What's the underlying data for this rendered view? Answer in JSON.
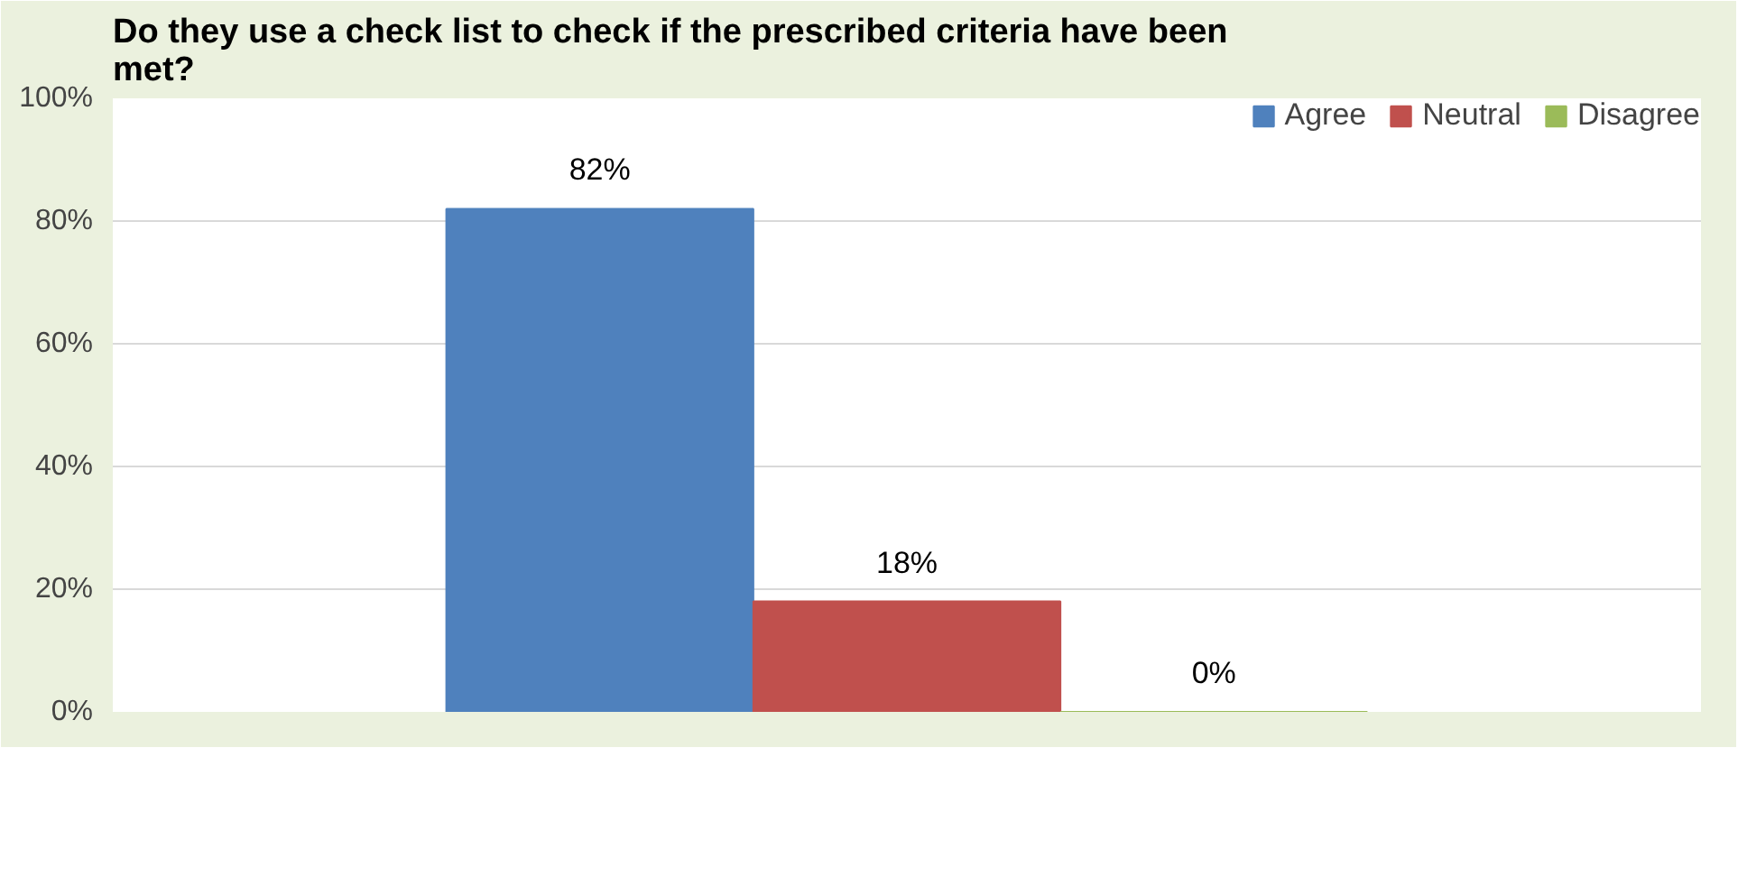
{
  "chart_data": {
    "type": "bar",
    "title": "Do they use a check list to check if the prescribed criteria have been met?",
    "categories": [
      null
    ],
    "series": [
      {
        "name": "Agree",
        "color": "#4f81bd",
        "values": [
          82
        ],
        "value_labels": [
          "82%"
        ]
      },
      {
        "name": "Neutral",
        "color": "#c0504d",
        "values": [
          18
        ],
        "value_labels": [
          "18%"
        ]
      },
      {
        "name": "Disagree",
        "color": "#9bbb59",
        "values": [
          0
        ],
        "value_labels": [
          "0%"
        ]
      }
    ],
    "ylim": [
      0,
      100
    ],
    "yticks": [
      {
        "value": 0,
        "label": "0%"
      },
      {
        "value": 20,
        "label": "20%"
      },
      {
        "value": 40,
        "label": "40%"
      },
      {
        "value": 60,
        "label": "60%"
      },
      {
        "value": 80,
        "label": "80%"
      },
      {
        "value": 100,
        "label": "100%"
      }
    ],
    "grid": "y",
    "legend": "top right"
  }
}
